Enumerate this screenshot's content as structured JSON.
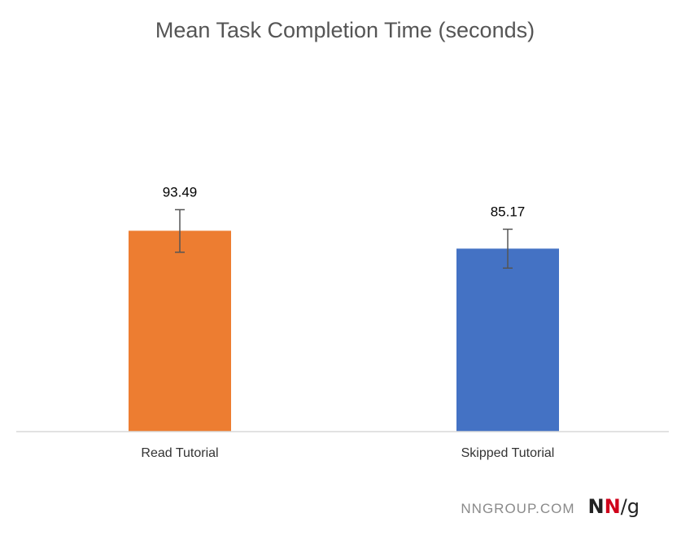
{
  "chart_data": {
    "type": "bar",
    "title": "Mean Task Completion Time (seconds)",
    "categories": [
      "Read Tutorial",
      "Skipped Tutorial"
    ],
    "values": [
      93.49,
      85.17
    ],
    "value_labels": [
      "93.49",
      "85.17"
    ],
    "error_bars": [
      {
        "low": 83.5,
        "high": 103.3
      },
      {
        "low": 76.1,
        "high": 94.2
      }
    ],
    "colors": [
      "#ed7d31",
      "#4472c4"
    ],
    "xlabel": "",
    "ylabel": "",
    "ylim": [
      0,
      141
    ],
    "grid": false,
    "legend": "none"
  },
  "footer": {
    "source": "NNGROUP.COM",
    "logo_n1": "N",
    "logo_n2": "N",
    "logo_g": "/g"
  }
}
